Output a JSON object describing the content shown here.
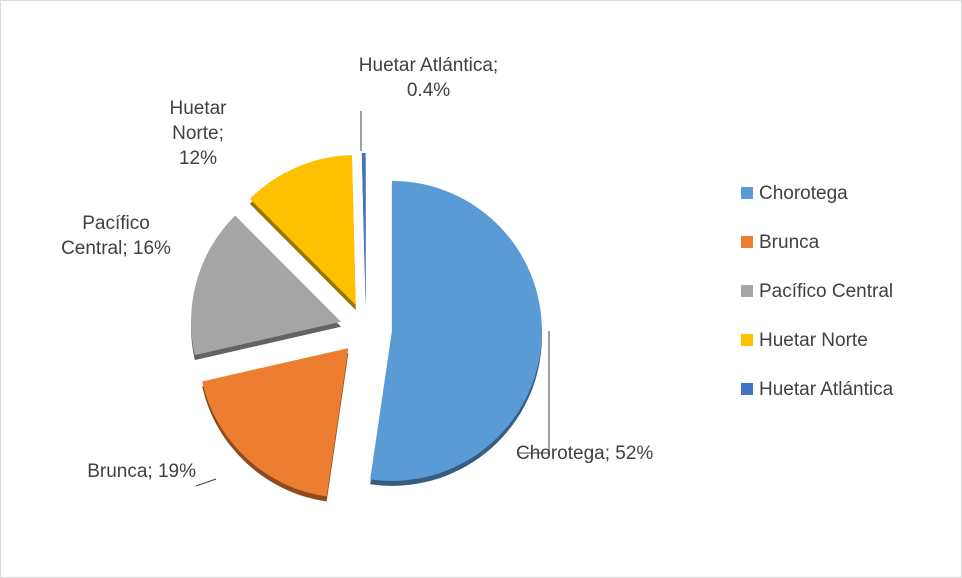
{
  "chart_data": {
    "type": "pie",
    "categories": [
      "Chorotega",
      "Brunca",
      "Pacífico Central",
      "Huetar Norte",
      "Huetar Atlántica"
    ],
    "values": [
      52,
      19,
      16,
      12,
      0.4
    ],
    "value_labels": [
      "Chorotega; 52%",
      "Brunca; 19%",
      "Pacífico Central; 16%",
      "Huetar Norte; 12%",
      "Huetar Atlántica; 0.4%"
    ],
    "colors": [
      "#5b9bd5",
      "#ed7d31",
      "#a5a5a5",
      "#ffc000",
      "#4472c4"
    ],
    "legend": "right"
  }
}
